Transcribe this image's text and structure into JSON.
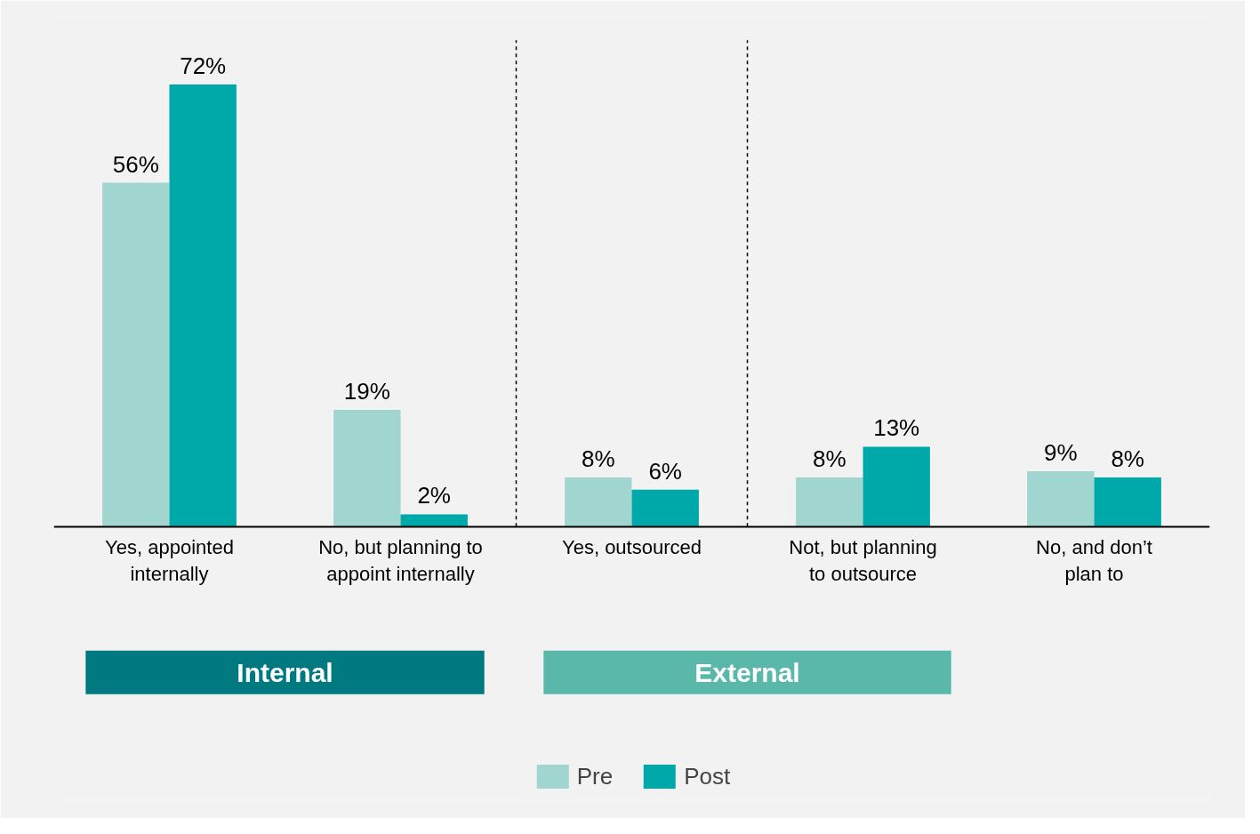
{
  "chart_data": {
    "type": "bar",
    "categories": [
      "Yes, appointed\ninternally",
      "No, but planning to\nappoint internally",
      "Yes, outsourced",
      "Not, but planning\nto outsource",
      "No, and don’t\nplan to"
    ],
    "series": [
      {
        "name": "Pre",
        "color": "#a0d5d0",
        "values": [
          56,
          19,
          8,
          8,
          9
        ],
        "value_labels": [
          "56%",
          "19%",
          "8%",
          "8%",
          "9%"
        ]
      },
      {
        "name": "Post",
        "color": "#00a9a9",
        "values": [
          72,
          2,
          6,
          13,
          8
        ],
        "value_labels": [
          "72%",
          "2%",
          "6%",
          "13%",
          "8%"
        ]
      }
    ],
    "annotations": [
      "Internal",
      "External"
    ],
    "legend": "bottom",
    "grid": false
  }
}
